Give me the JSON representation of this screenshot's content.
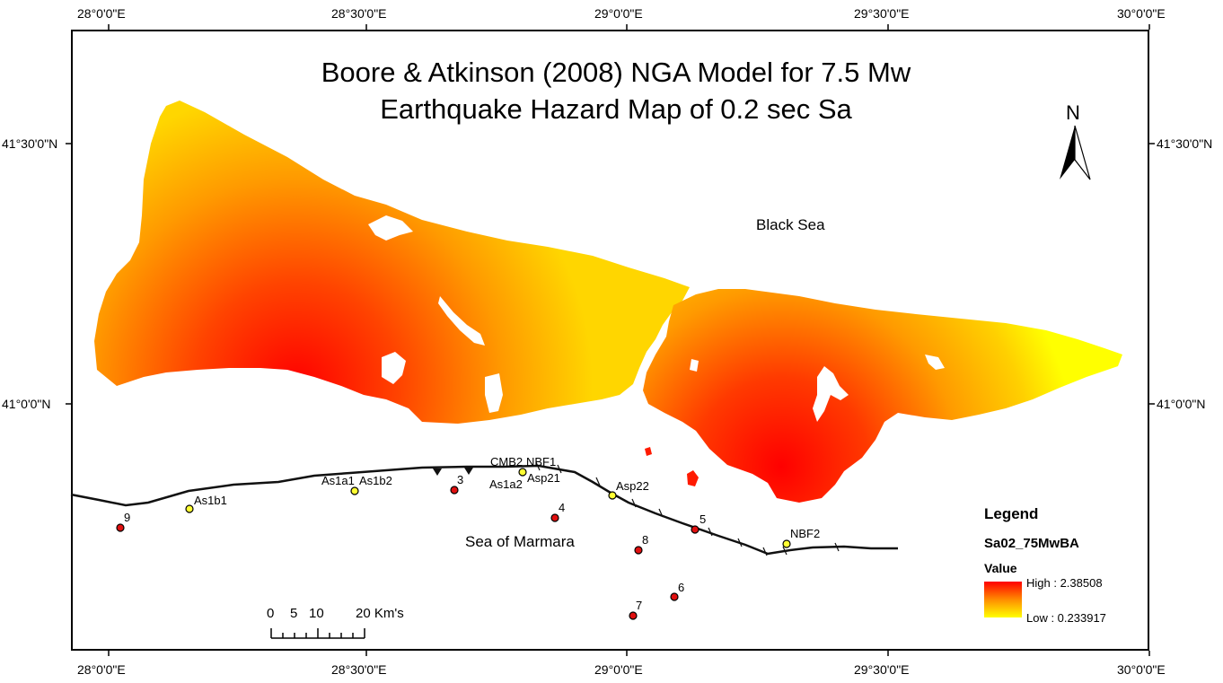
{
  "title": {
    "line1": "Boore & Atkinson (2008) NGA Model for 7.5 Mw",
    "line2": "Earthquake Hazard Map of 0.2 sec Sa"
  },
  "north_arrow": {
    "label": "N",
    "icon": "north-arrow-icon"
  },
  "graticule": {
    "longitudes": [
      "28°0'0\"E",
      "28°30'0\"E",
      "29°0'0\"E",
      "29°30'0\"E",
      "30°0'0\"E"
    ],
    "latitudes": [
      "41°30'0\"N",
      "41°0'0\"N"
    ]
  },
  "water_labels": {
    "black_sea": "Black Sea",
    "marmara": "Sea of Marmara"
  },
  "stations": {
    "yellow": [
      "As1b1",
      "As1a1",
      "As1b2",
      "CMB2",
      "NBF1",
      "As1a2",
      "Asp21",
      "Asp22",
      "NBF2"
    ],
    "red": [
      "9",
      "3",
      "4",
      "5",
      "8",
      "6",
      "7"
    ]
  },
  "scale_bar": {
    "labels": [
      "0",
      "5",
      "10",
      "20 Km's"
    ]
  },
  "legend": {
    "heading": "Legend",
    "layer": "Sa02_75MwBA",
    "value_label": "Value",
    "high": "High : 2.38508",
    "low": "Low : 0.233917",
    "colors": {
      "high": "#ff0000",
      "low": "#ffff00"
    }
  }
}
